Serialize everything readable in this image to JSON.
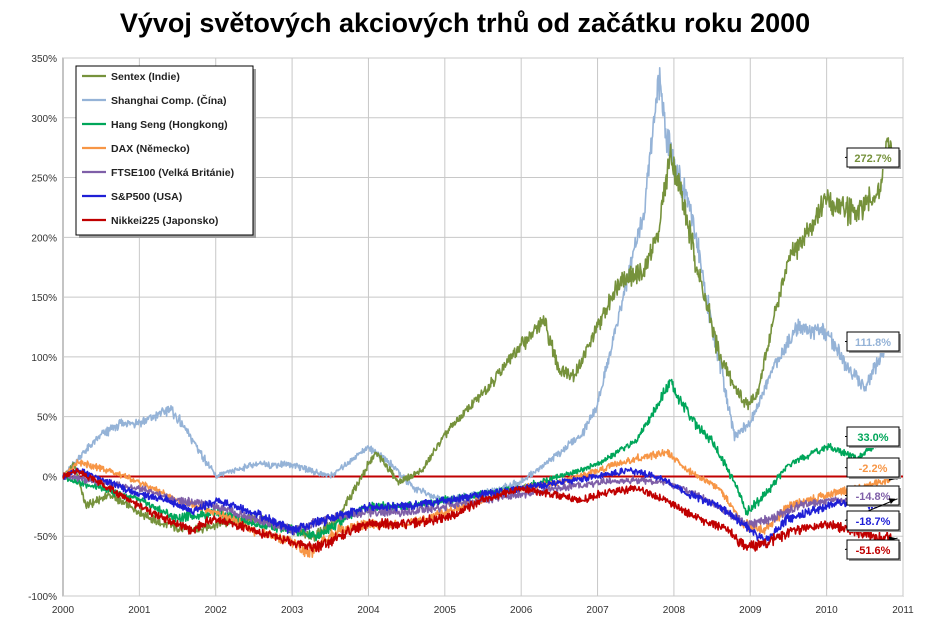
{
  "chart_data": {
    "type": "line",
    "title": "Vývoj světových akciových trhů od začátku roku 2000",
    "xlabel": "",
    "ylabel": "",
    "x_ticks": [
      "2000",
      "2001",
      "2002",
      "2003",
      "2004",
      "2005",
      "2006",
      "2007",
      "2008",
      "2009",
      "2010",
      "2011"
    ],
    "y_ticks": [
      "350%",
      "300%",
      "250%",
      "200%",
      "150%",
      "100%",
      "50%",
      "0%",
      "-50%",
      "-100%"
    ],
    "xlim": [
      2000,
      2011
    ],
    "ylim": [
      -100,
      350
    ],
    "grid": true,
    "legend_position": "top-left",
    "reference_line": {
      "value": 0,
      "color": "#c00000"
    },
    "series": [
      {
        "name": "Sentex (Indie)",
        "color": "#76923c",
        "end_label": "272.7%",
        "x": [
          2000,
          2000.15,
          2000.3,
          2000.6,
          2001,
          2001.3,
          2001.7,
          2002,
          2002.5,
          2003,
          2003.3,
          2003.6,
          2004,
          2004.1,
          2004.4,
          2004.7,
          2005,
          2005.5,
          2006,
          2006.3,
          2006.5,
          2006.7,
          2007,
          2007.3,
          2007.6,
          2007.8,
          2007.95,
          2008.1,
          2008.3,
          2008.6,
          2008.8,
          2008.95,
          2009.1,
          2009.3,
          2009.5,
          2009.8,
          2010,
          2010.4,
          2010.7,
          2010.8,
          2010.85
        ],
        "y": [
          0,
          10,
          -25,
          -15,
          -30,
          -40,
          -45,
          -40,
          -35,
          -45,
          -50,
          -35,
          10,
          20,
          -5,
          5,
          35,
          70,
          110,
          130,
          90,
          85,
          125,
          165,
          170,
          205,
          270,
          235,
          175,
          100,
          75,
          60,
          70,
          130,
          180,
          210,
          230,
          220,
          240,
          280,
          272.7
        ]
      },
      {
        "name": "Shanghai Comp. (Čína)",
        "color": "#95b3d7",
        "end_label": "111.8%",
        "x": [
          2000,
          2000.2,
          2000.5,
          2000.8,
          2001,
          2001.2,
          2001.4,
          2001.6,
          2001.9,
          2002,
          2002.5,
          2003,
          2003.5,
          2004,
          2004.3,
          2004.6,
          2005,
          2005.5,
          2006,
          2006.5,
          2006.8,
          2007,
          2007.3,
          2007.6,
          2007.8,
          2007.95,
          2008.2,
          2008.5,
          2008.8,
          2009,
          2009.3,
          2009.6,
          2010,
          2010.3,
          2010.5,
          2010.8,
          2010.85
        ],
        "y": [
          0,
          15,
          35,
          45,
          45,
          50,
          57,
          40,
          10,
          0,
          10,
          10,
          0,
          25,
          10,
          -10,
          -20,
          -15,
          -5,
          20,
          35,
          60,
          140,
          220,
          330,
          270,
          230,
          125,
          35,
          45,
          90,
          125,
          120,
          90,
          75,
          110,
          111.8
        ]
      },
      {
        "name": "Hang Seng (Hongkong)",
        "color": "#00a65a",
        "end_label": "33.0%",
        "x": [
          2000,
          2000.2,
          2000.5,
          2001,
          2001.5,
          2002,
          2002.5,
          2003,
          2003.3,
          2003.7,
          2004,
          2004.5,
          2005,
          2005.5,
          2006,
          2006.5,
          2007,
          2007.5,
          2007.8,
          2007.95,
          2008.2,
          2008.5,
          2008.8,
          2008.95,
          2009.2,
          2009.5,
          2010,
          2010.4,
          2010.7,
          2010.85
        ],
        "y": [
          0,
          -5,
          -10,
          -20,
          -35,
          -30,
          -40,
          -45,
          -50,
          -35,
          -25,
          -25,
          -20,
          -15,
          -10,
          0,
          10,
          30,
          60,
          80,
          50,
          30,
          -5,
          -30,
          -15,
          10,
          25,
          15,
          30,
          33.0
        ]
      },
      {
        "name": "DAX (Německo)",
        "color": "#f79646",
        "end_label": "-2.2%",
        "x": [
          2000,
          2000.2,
          2000.6,
          2001,
          2001.5,
          2002,
          2002.5,
          2003,
          2003.2,
          2003.6,
          2004,
          2004.5,
          2005,
          2005.5,
          2006,
          2006.5,
          2007,
          2007.5,
          2007.9,
          2008.2,
          2008.6,
          2008.9,
          2009.2,
          2009.5,
          2010,
          2010.4,
          2010.85
        ],
        "y": [
          0,
          12,
          5,
          -5,
          -20,
          -30,
          -45,
          -55,
          -65,
          -45,
          -40,
          -40,
          -30,
          -20,
          -10,
          -5,
          5,
          15,
          20,
          5,
          -10,
          -40,
          -45,
          -25,
          -15,
          -10,
          -2.2
        ]
      },
      {
        "name": "FTSE100 (Velká Británie)",
        "color": "#7f5fa8",
        "end_label": "-14.8%",
        "x": [
          2000,
          2000.5,
          2001,
          2001.5,
          2002,
          2002.5,
          2003,
          2003.5,
          2004,
          2004.5,
          2005,
          2005.5,
          2006,
          2006.5,
          2007,
          2007.5,
          2007.9,
          2008.3,
          2008.7,
          2008.95,
          2009.3,
          2009.6,
          2010,
          2010.4,
          2010.85
        ],
        "y": [
          0,
          -5,
          -10,
          -20,
          -25,
          -35,
          -45,
          -35,
          -30,
          -30,
          -25,
          -20,
          -15,
          -10,
          -5,
          -3,
          -5,
          -15,
          -30,
          -40,
          -35,
          -25,
          -20,
          -20,
          -14.8
        ]
      },
      {
        "name": "S&P500 (USA)",
        "color": "#1f1fd6",
        "end_label": "-18.7%",
        "x": [
          2000,
          2000.2,
          2000.6,
          2001,
          2001.4,
          2001.7,
          2002,
          2002.5,
          2003,
          2003.5,
          2004,
          2004.5,
          2005,
          2005.5,
          2006,
          2006.5,
          2007,
          2007.4,
          2007.8,
          2008.2,
          2008.6,
          2008.9,
          2009.2,
          2009.5,
          2010,
          2010.4,
          2010.6,
          2010.85
        ],
        "y": [
          0,
          5,
          -5,
          -15,
          -20,
          -30,
          -20,
          -30,
          -45,
          -35,
          -25,
          -25,
          -20,
          -15,
          -10,
          -5,
          0,
          5,
          0,
          -15,
          -25,
          -40,
          -55,
          -35,
          -25,
          -20,
          -25,
          -18.7
        ]
      },
      {
        "name": "Nikkei225 (Japonsko)",
        "color": "#c00000",
        "end_label": "-51.6%",
        "x": [
          2000,
          2000.2,
          2000.6,
          2001,
          2001.3,
          2001.7,
          2002,
          2002.5,
          2003,
          2003.3,
          2003.6,
          2004,
          2004.5,
          2005,
          2005.5,
          2006,
          2006.4,
          2006.8,
          2007,
          2007.5,
          2007.9,
          2008.3,
          2008.7,
          2008.95,
          2009.2,
          2009.6,
          2010,
          2010.3,
          2010.6,
          2010.85
        ],
        "y": [
          0,
          5,
          -10,
          -25,
          -35,
          -45,
          -35,
          -45,
          -55,
          -60,
          -50,
          -40,
          -40,
          -35,
          -20,
          -10,
          -15,
          -20,
          -15,
          -10,
          -20,
          -35,
          -45,
          -60,
          -55,
          -45,
          -40,
          -45,
          -50,
          -51.6
        ]
      }
    ]
  }
}
